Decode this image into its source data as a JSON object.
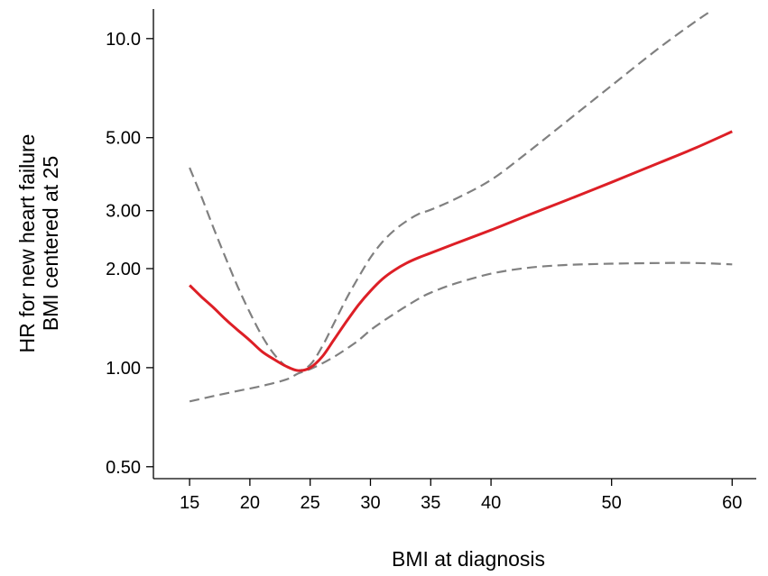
{
  "chart_data": {
    "type": "line",
    "title": "",
    "xlabel": "BMI at diagnosis",
    "ylabel_lines": [
      "HR for new heart failure",
      "BMI centered at 25"
    ],
    "y_scale": "log",
    "xlim": [
      12,
      62
    ],
    "ylim": [
      0.46,
      12.3
    ],
    "x_ticks": [
      15,
      20,
      25,
      30,
      35,
      40,
      50,
      60
    ],
    "y_ticks": [
      {
        "value": 0.5,
        "label": "0.50"
      },
      {
        "value": 1.0,
        "label": "1.00"
      },
      {
        "value": 2.0,
        "label": "2.00"
      },
      {
        "value": 3.0,
        "label": "3.00"
      },
      {
        "value": 5.0,
        "label": "5.00"
      },
      {
        "value": 10.0,
        "label": "10.0"
      }
    ],
    "grid": false,
    "legend": "none",
    "series": [
      {
        "role": "estimate",
        "color": "#dd1f26",
        "style": "solid",
        "x": [
          15,
          16,
          17,
          18,
          19,
          20,
          21,
          22,
          23,
          24,
          25,
          26,
          27,
          28,
          29,
          30,
          31,
          32,
          33,
          34,
          35,
          37,
          40,
          43,
          46,
          50,
          54,
          57,
          60
        ],
        "y": [
          1.78,
          1.64,
          1.52,
          1.4,
          1.3,
          1.21,
          1.12,
          1.06,
          1.01,
          0.98,
          1.0,
          1.08,
          1.22,
          1.38,
          1.55,
          1.71,
          1.86,
          1.98,
          2.08,
          2.16,
          2.23,
          2.38,
          2.62,
          2.9,
          3.2,
          3.66,
          4.2,
          4.66,
          5.22
        ]
      },
      {
        "role": "upper-95ci",
        "color": "#808080",
        "style": "dashed",
        "x": [
          15,
          16,
          17,
          18,
          19,
          20,
          21,
          22,
          23,
          24,
          25,
          26,
          27,
          28,
          29,
          30,
          31,
          32,
          33,
          34,
          35,
          37,
          40,
          43,
          46,
          50,
          54,
          57,
          58.2
        ],
        "y": [
          4.05,
          3.3,
          2.65,
          2.15,
          1.76,
          1.47,
          1.25,
          1.1,
          1.01,
          0.98,
          1.02,
          1.16,
          1.37,
          1.62,
          1.88,
          2.16,
          2.41,
          2.62,
          2.79,
          2.93,
          3.02,
          3.25,
          3.72,
          4.5,
          5.5,
          7.2,
          9.4,
          11.3,
          12.1
        ]
      },
      {
        "role": "lower-95ci",
        "color": "#808080",
        "style": "dashed",
        "x": [
          15,
          17,
          19,
          21,
          23,
          24,
          25,
          26,
          27,
          28,
          29,
          30,
          31,
          32,
          33,
          34,
          35,
          37,
          40,
          43,
          46,
          50,
          54,
          57,
          60
        ],
        "y": [
          0.79,
          0.82,
          0.85,
          0.88,
          0.92,
          0.96,
          0.99,
          1.03,
          1.08,
          1.14,
          1.21,
          1.3,
          1.38,
          1.46,
          1.54,
          1.62,
          1.69,
          1.8,
          1.93,
          2.01,
          2.05,
          2.07,
          2.08,
          2.08,
          2.06
        ]
      }
    ]
  }
}
